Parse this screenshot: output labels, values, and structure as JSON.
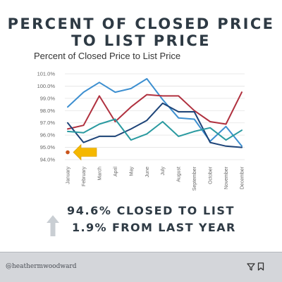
{
  "headline": {
    "line1": "PERCENT OF CLOSED PRICE",
    "line2": "TO LIST PRICE"
  },
  "stats": {
    "closed_to_list": "94.6% CLOSED TO LIST",
    "change": "1.9% FROM LAST YEAR"
  },
  "footer": {
    "handle": "@heathermwoodward",
    "icons": [
      "filter-icon",
      "bookmark-icon"
    ]
  },
  "colors": {
    "series_light_blue": "#3d8fd0",
    "series_red": "#b0313f",
    "series_navy": "#1d4478",
    "series_teal": "#2a9aa0",
    "current_marker": "#c9541a",
    "pointer_arrow": "#f5b800",
    "up_arrow": "#c9ced3",
    "text_dark": "#2e3a44"
  },
  "chart_data": {
    "type": "line",
    "title": "Percent of Closed Price to List Price",
    "categories": [
      "January",
      "February",
      "March",
      "April",
      "May",
      "June",
      "July",
      "August",
      "September",
      "October",
      "November",
      "December"
    ],
    "ylim": [
      94.0,
      101.0
    ],
    "yticks": [
      "94.0%",
      "95.0%",
      "96.0%",
      "97.0%",
      "98.0%",
      "99.0%",
      "100.0%",
      "101.0%"
    ],
    "grid": true,
    "series": [
      {
        "color": "#3d8fd0",
        "values": [
          98.3,
          99.5,
          100.3,
          99.5,
          99.8,
          100.6,
          98.9,
          97.4,
          97.3,
          95.5,
          96.7,
          95.1
        ]
      },
      {
        "color": "#b0313f",
        "values": [
          96.5,
          96.8,
          99.2,
          97.1,
          98.3,
          99.3,
          99.2,
          99.2,
          98.0,
          97.1,
          96.9,
          99.5
        ]
      },
      {
        "color": "#1d4478",
        "values": [
          97.0,
          95.4,
          95.9,
          95.9,
          96.5,
          97.2,
          98.6,
          97.9,
          97.9,
          95.4,
          95.1,
          95.0
        ]
      },
      {
        "color": "#2a9aa0",
        "values": [
          96.3,
          96.2,
          96.9,
          97.3,
          95.6,
          96.1,
          97.1,
          95.9,
          96.3,
          96.6,
          95.6,
          96.4
        ]
      }
    ],
    "current": {
      "category": "January",
      "value": 94.6,
      "color": "#c9541a"
    }
  }
}
